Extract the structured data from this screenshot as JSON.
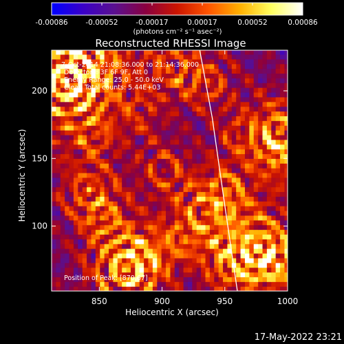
{
  "chart_data": {
    "type": "heatmap",
    "title": "Reconstructed RHESSI Image",
    "xlabel": "Heliocentric X (arcsec)",
    "ylabel": "Heliocentric Y (arcsec)",
    "xlim": [
      812,
      1000
    ],
    "ylim": [
      52,
      230
    ],
    "x_ticks": [
      850,
      900,
      950,
      1000
    ],
    "y_ticks": [
      100,
      150,
      200
    ],
    "colorbar": {
      "range": [
        -0.00086,
        0.00086
      ],
      "ticks": [
        "-0.00086",
        "-0.00052",
        "-0.00017",
        "0.00017",
        "0.00052",
        "0.00086"
      ],
      "unit_label": "(photons cm⁻² s⁻¹ asec⁻²)"
    },
    "annotations": {
      "time_range": "7-Oct-2014 21:08:36.000 to 21:14:36.000",
      "detectors": "Detectors: 3F 6F 9F, Att 0",
      "energy_range": "Energy Range: 25.0 - 50.0 keV",
      "method": "Clean   Total counts: 5.44E+03",
      "peak_position": "Position of Peak: [870,67]"
    },
    "peak": {
      "x": 870,
      "y": 67
    },
    "limb_curve": {
      "x": [
        930,
        940,
        950,
        960
      ],
      "y": [
        230,
        180,
        115,
        52
      ]
    },
    "timestamp": "17-May-2022 23:21"
  },
  "colors": {
    "background": "#000000",
    "colormap": [
      "#0000ff",
      "#3a00c8",
      "#5a1090",
      "#8a0040",
      "#cc1500",
      "#ff5500",
      "#ffb000",
      "#ffff60",
      "#ffffff"
    ]
  }
}
